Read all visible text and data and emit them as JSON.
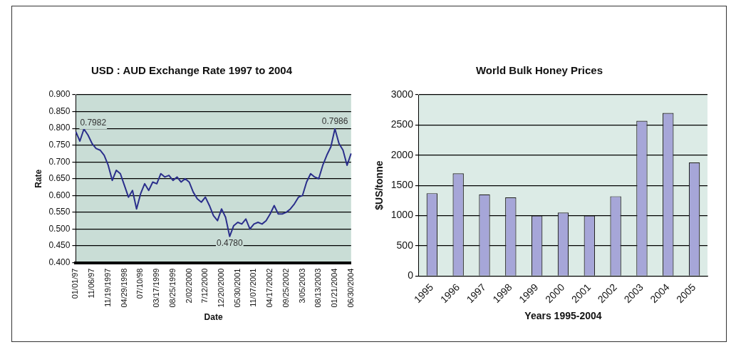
{
  "chart_data": [
    {
      "type": "line",
      "title": "USD : AUD Exchange Rate 1997 to 2004",
      "xlabel": "Date",
      "ylabel": "Rate",
      "categories": [
        "01/01/97",
        null,
        null,
        null,
        "11/06/97",
        null,
        null,
        null,
        "11/19/1997",
        null,
        null,
        null,
        "04/29/1998",
        null,
        null,
        null,
        "07/10/98",
        null,
        null,
        null,
        "03/17/1999",
        null,
        null,
        null,
        "08/25/1999",
        null,
        null,
        null,
        "2/02/2000",
        null,
        null,
        null,
        "7/12/2000",
        null,
        null,
        null,
        "12/20/2000",
        null,
        null,
        null,
        "05/30/2001",
        null,
        null,
        null,
        "11/07/2001",
        null,
        null,
        null,
        "04/17/2002",
        null,
        null,
        null,
        "09/25/2002",
        null,
        null,
        null,
        "3/05/2003",
        null,
        null,
        null,
        "08/13/2003",
        null,
        null,
        null,
        "01/21/2004",
        null,
        null,
        null,
        "06/30/2004"
      ],
      "series": [
        {
          "color": "#2b2f8c",
          "values": [
            0.79,
            0.762,
            0.7982,
            0.78,
            0.755,
            0.74,
            0.735,
            0.72,
            0.69,
            0.645,
            0.675,
            0.665,
            0.63,
            0.595,
            0.615,
            0.56,
            0.605,
            0.635,
            0.615,
            0.64,
            0.635,
            0.665,
            0.655,
            0.66,
            0.645,
            0.655,
            0.64,
            0.65,
            0.64,
            0.61,
            0.59,
            0.58,
            0.595,
            0.57,
            0.54,
            0.525,
            0.56,
            0.535,
            0.478,
            0.51,
            0.52,
            0.515,
            0.53,
            0.5,
            0.515,
            0.52,
            0.515,
            0.525,
            0.545,
            0.57,
            0.545,
            0.545,
            0.55,
            0.56,
            0.575,
            0.595,
            0.6,
            0.64,
            0.665,
            0.655,
            0.65,
            0.69,
            0.72,
            0.745,
            0.7986,
            0.755,
            0.735,
            0.69,
            0.725
          ]
        }
      ],
      "ylim": [
        0.4,
        0.9
      ],
      "yticks": [
        {
          "value": 0.4,
          "label": "0.400"
        },
        {
          "value": 0.45,
          "label": "0.450"
        },
        {
          "value": 0.5,
          "label": "0.500"
        },
        {
          "value": 0.55,
          "label": "0.550"
        },
        {
          "value": 0.6,
          "label": "0.600"
        },
        {
          "value": 0.65,
          "label": "0.650"
        },
        {
          "value": 0.7,
          "label": "0.700"
        },
        {
          "value": 0.75,
          "label": "0.750"
        },
        {
          "value": 0.8,
          "label": "0.800"
        },
        {
          "value": 0.85,
          "label": "0.850"
        },
        {
          "value": 0.9,
          "label": "0.900"
        }
      ],
      "annotations": [
        "0.7982",
        {
          "text": "0.4780",
          "y": 0.478
        },
        {
          "text": "0.7986",
          "y": 0.7986
        }
      ],
      "grid": "y",
      "legend": false,
      "marker": "none",
      "line_style": "solid"
    },
    {
      "type": "bar",
      "title": "World Bulk Honey Prices",
      "xlabel": "Years 1995-2004",
      "ylabel": "$US/tonne",
      "categories": [
        "1995",
        "1996",
        "1997",
        "1998",
        "1999",
        "2000",
        "2001",
        "2002",
        "2003",
        "2004",
        "2005"
      ],
      "values": [
        1370,
        1700,
        1350,
        1300,
        1000,
        1050,
        1000,
        1320,
        2570,
        2700,
        1880
      ],
      "color": "#a6a6d8",
      "ylim": [
        0,
        3000
      ],
      "yticks": [
        0,
        500,
        1000,
        1500,
        2000,
        2500,
        3000
      ],
      "grid": "y",
      "legend": false
    }
  ]
}
